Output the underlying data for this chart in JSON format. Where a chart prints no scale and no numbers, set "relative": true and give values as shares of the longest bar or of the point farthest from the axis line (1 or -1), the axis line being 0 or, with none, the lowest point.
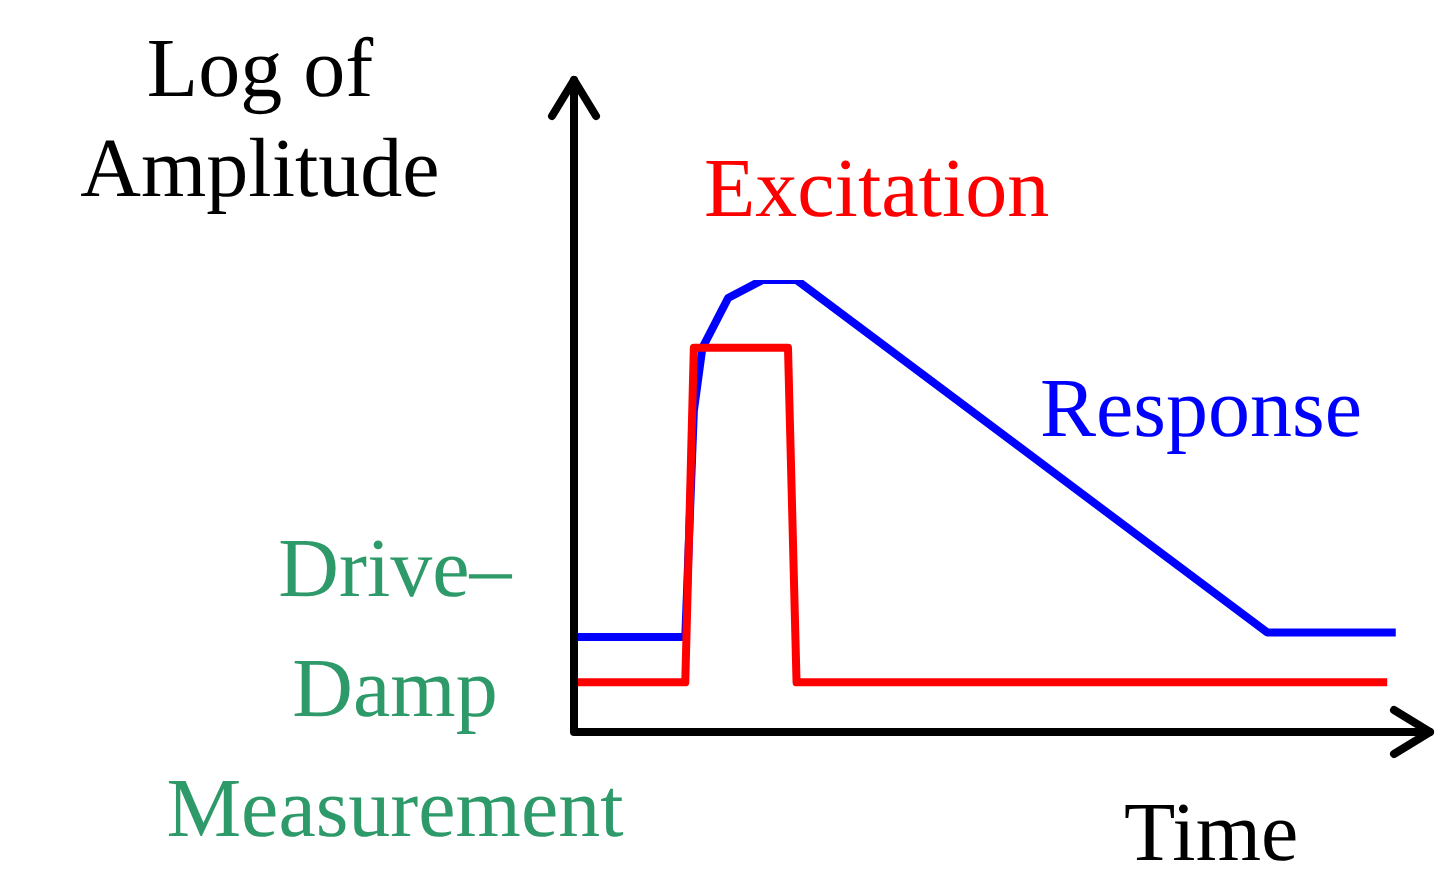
{
  "chart_data": {
    "type": "line",
    "relative": true,
    "xlabel": "Time",
    "ylabel": "Log of Amplitude",
    "annotations": [
      "Drive–\nDamp\nMeasurement"
    ],
    "legend": false,
    "marker": "none",
    "line_style": "solid",
    "categories": [
      null,
      null,
      null,
      null,
      null,
      null,
      null,
      null,
      null,
      null,
      null,
      null,
      null,
      null,
      null,
      null,
      null,
      null,
      null,
      null,
      null,
      null,
      null,
      null,
      null,
      null,
      null,
      null,
      null,
      null,
      null,
      null,
      null,
      null,
      null,
      null,
      null,
      null,
      null,
      null,
      null,
      null,
      null,
      null,
      null,
      null,
      null,
      null,
      null,
      null,
      null,
      null,
      null,
      null,
      null,
      null,
      null,
      null,
      null,
      null,
      null,
      null,
      null,
      null,
      null,
      null,
      null,
      null,
      null,
      null,
      null,
      null,
      null,
      null,
      null,
      null,
      null,
      null,
      null,
      null,
      null,
      null,
      null,
      null,
      null,
      null,
      null,
      null,
      null,
      null,
      null,
      null,
      null,
      null,
      null,
      null,
      null,
      null,
      null,
      null,
      null
    ],
    "series": [
      {
        "name": "Excitation",
        "color": "#ff0000",
        "values": [
          0.11,
          null,
          null,
          null,
          null,
          null,
          null,
          null,
          null,
          null,
          null,
          null,
          null,
          0.11,
          0.85,
          null,
          null,
          null,
          null,
          null,
          null,
          null,
          null,
          null,
          null,
          0.85,
          0.11,
          null,
          null,
          null,
          null,
          null,
          null,
          null,
          null,
          null,
          null,
          null,
          null,
          null,
          null,
          null,
          null,
          null,
          null,
          null,
          null,
          null,
          null,
          null,
          null,
          null,
          null,
          null,
          null,
          null,
          null,
          null,
          null,
          null,
          null,
          null,
          null,
          null,
          null,
          null,
          null,
          null,
          null,
          null,
          null,
          null,
          null,
          null,
          null,
          null,
          null,
          null,
          null,
          null,
          null,
          null,
          null,
          null,
          null,
          null,
          null,
          null,
          null,
          null,
          null,
          null,
          null,
          null,
          null,
          0.11,
          null,
          null,
          null,
          null,
          null
        ]
      },
      {
        "name": "Response",
        "color": "#0000ff",
        "values": [
          0.21,
          null,
          null,
          null,
          null,
          null,
          null,
          null,
          null,
          null,
          null,
          null,
          null,
          0.21,
          0.71,
          0.85,
          null,
          null,
          0.96,
          null,
          null,
          null,
          1,
          null,
          null,
          null,
          1,
          null,
          null,
          null,
          null,
          null,
          null,
          null,
          null,
          null,
          null,
          null,
          null,
          null,
          null,
          null,
          null,
          null,
          null,
          null,
          null,
          null,
          null,
          null,
          null,
          null,
          null,
          null,
          null,
          null,
          null,
          null,
          null,
          null,
          null,
          null,
          null,
          null,
          null,
          null,
          null,
          null,
          null,
          null,
          null,
          null,
          null,
          null,
          null,
          null,
          null,
          null,
          null,
          null,
          null,
          0.22,
          null,
          null,
          null,
          null,
          null,
          null,
          null,
          null,
          null,
          null,
          null,
          null,
          null,
          null,
          0.22,
          null,
          null,
          null,
          null
        ]
      }
    ]
  }
}
